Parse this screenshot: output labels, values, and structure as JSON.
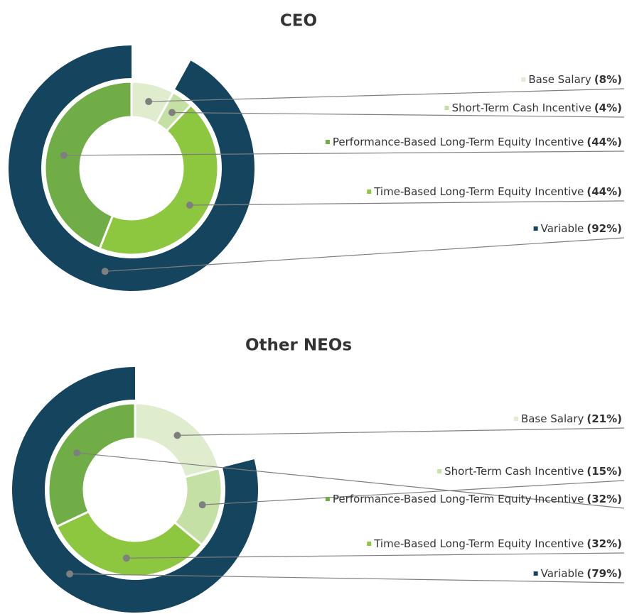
{
  "chart_data": [
    {
      "type": "pie",
      "title": "CEO",
      "categories": [
        "Base Salary",
        "Short-Term Cash Incentive",
        "Time-Based Long-Term Equity Incentive",
        "Performance-Based Long-Term Equity Incentive"
      ],
      "values": [
        8,
        4,
        44,
        44
      ],
      "value_labels": [
        "(8%)",
        "(4%)",
        "(44%)",
        "(44%)"
      ],
      "colors": [
        "#dfeccd",
        "#c5e0a5",
        "#8dc63f",
        "#70ad47"
      ],
      "outer": {
        "name": "Variable",
        "value": 92,
        "value_label": "(92%)",
        "color": "#15455e"
      }
    },
    {
      "type": "pie",
      "title": "Other NEOs",
      "categories": [
        "Base Salary",
        "Short-Term Cash Incentive",
        "Time-Based Long-Term Equity Incentive",
        "Performance-Based Long-Term Equity Incentive"
      ],
      "values": [
        21,
        15,
        32,
        32
      ],
      "value_labels": [
        "(21%)",
        "(15%)",
        "(32%)",
        "(32%)"
      ],
      "colors": [
        "#dfeccd",
        "#c5e0a5",
        "#8dc63f",
        "#70ad47"
      ],
      "outer": {
        "name": "Variable",
        "value": 79,
        "value_label": "(79%)",
        "color": "#15455e"
      }
    }
  ]
}
